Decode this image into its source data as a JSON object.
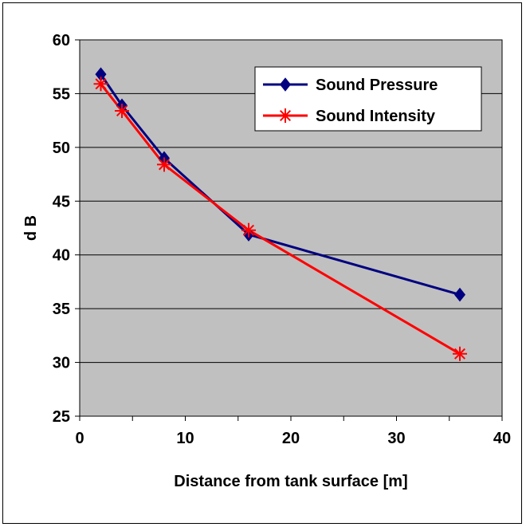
{
  "chart_data": {
    "type": "line",
    "title": "",
    "xlabel": "Distance from tank surface [m]",
    "ylabel": "d B",
    "xlim": [
      0,
      40
    ],
    "ylim": [
      25,
      60
    ],
    "xticks": [
      0,
      10,
      20,
      30,
      40
    ],
    "yticks": [
      25,
      30,
      35,
      40,
      45,
      50,
      55,
      60
    ],
    "grid": "horizontal",
    "legend_position": "top-right",
    "plot_background": "#c0c0c0",
    "series": [
      {
        "name": "Sound Pressure",
        "color": "#000080",
        "marker": "diamond",
        "x": [
          2,
          4,
          8,
          16,
          36
        ],
        "y": [
          56.8,
          53.9,
          49.0,
          41.9,
          36.3
        ]
      },
      {
        "name": "Sound Intensity",
        "color": "#ff0000",
        "marker": "asterisk",
        "x": [
          2,
          4,
          8,
          16,
          36
        ],
        "y": [
          55.9,
          53.4,
          48.4,
          42.3,
          30.8
        ]
      }
    ]
  }
}
